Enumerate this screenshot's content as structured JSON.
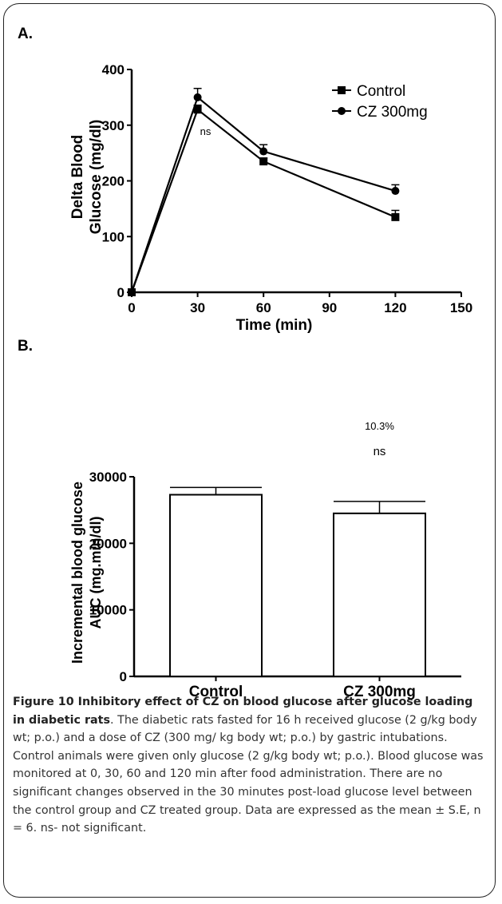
{
  "panels": {
    "a_label": "A.",
    "b_label": "B."
  },
  "chart_data": [
    {
      "type": "line",
      "xlabel": "Time (min)",
      "ylabel_line1": "Delta Blood",
      "ylabel_line2": "Glucose (mg/dl)",
      "xlim": [
        0,
        150
      ],
      "ylim": [
        0,
        400
      ],
      "xticks": [
        0,
        30,
        60,
        90,
        120,
        150
      ],
      "yticks": [
        0,
        100,
        200,
        300,
        400
      ],
      "legend_position": "top-right",
      "annotation": "ns",
      "series": [
        {
          "name": "Control",
          "marker": "square",
          "x": [
            0,
            30,
            60,
            120
          ],
          "values": [
            0,
            328,
            235,
            135
          ],
          "err": [
            0,
            8,
            6,
            12
          ]
        },
        {
          "name": "CZ 300mg",
          "marker": "circle",
          "x": [
            0,
            30,
            60,
            120
          ],
          "values": [
            0,
            350,
            253,
            182
          ],
          "err": [
            0,
            16,
            12,
            11
          ]
        }
      ]
    },
    {
      "type": "bar",
      "ylabel_line1": "Incremental blood glucose",
      "ylabel_line2": "AUC  (mg.min/dl)",
      "categories": [
        "Control",
        "CZ 300mg"
      ],
      "values": [
        27300,
        24500
      ],
      "err": [
        1100,
        1800
      ],
      "ylim": [
        0,
        30000
      ],
      "yticks": [
        0,
        10000,
        20000,
        30000
      ],
      "annotations": [
        {
          "category": "CZ 300mg",
          "lines": [
            "10.3%",
            "ns"
          ]
        }
      ]
    }
  ],
  "caption": {
    "title": "Figure 10 Inhibitory effect of CZ on blood glucose after glucose loading in diabetic rats",
    "body": ". The diabetic rats fasted for 16 h received glucose (2 g/kg body wt; p.o.) and a dose of CZ (300 mg/ kg body wt; p.o.) by gastric intubations. Control animals were given only glucose (2 g/kg body wt; p.o.). Blood glucose was monitored at 0, 30, 60 and 120 min after food administration. There are no significant changes observed in the 30 minutes post-load glucose level between the control group and CZ treated group. Data are expressed as the mean ± S.E, n = 6. ns- not significant."
  }
}
